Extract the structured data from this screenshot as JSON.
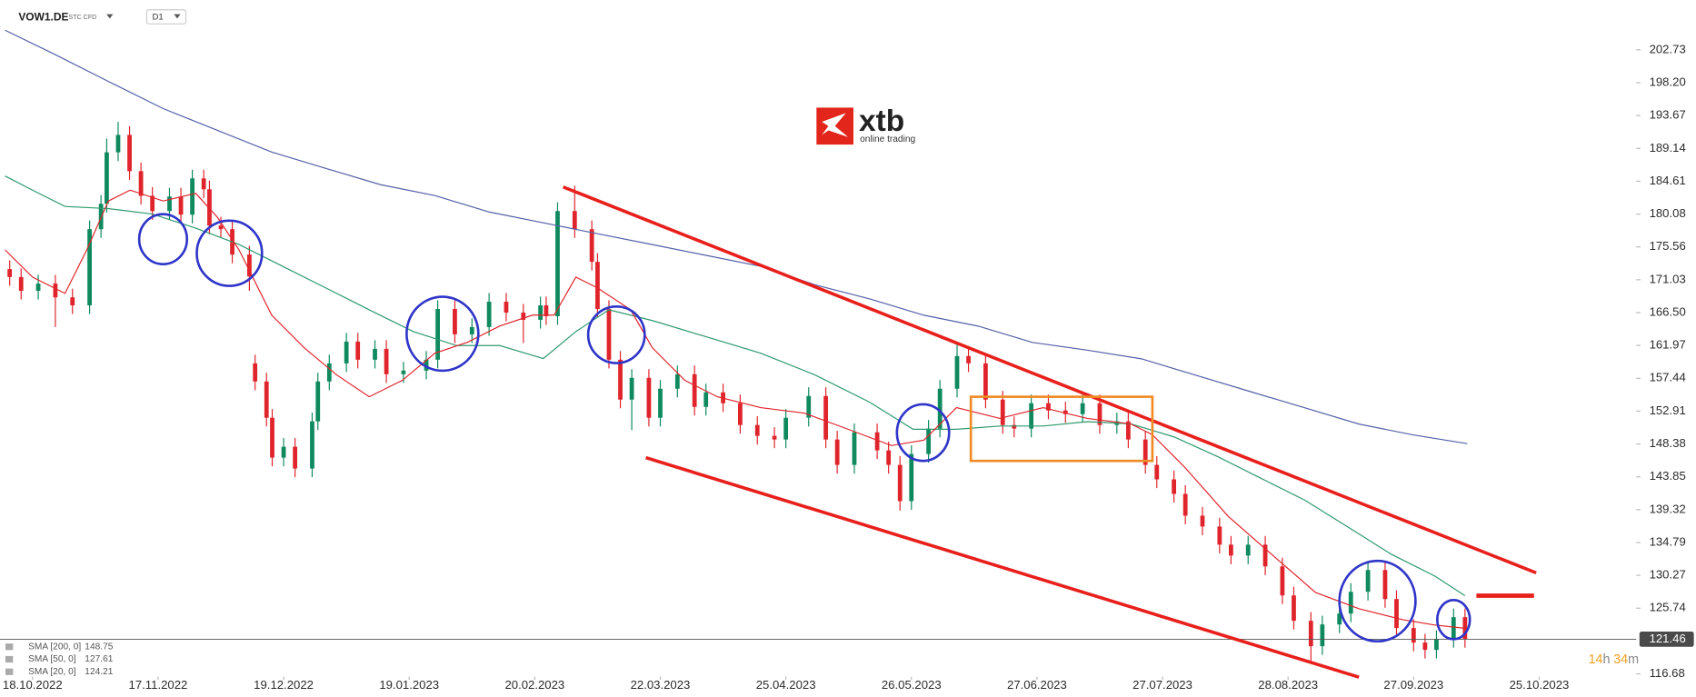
{
  "header": {
    "symbol": "VOW1.DE",
    "instrument": "STC CFD",
    "interval": "D1"
  },
  "logo": {
    "name": "xtb",
    "tagline": "online trading"
  },
  "countdown": [
    "14",
    "h",
    "34",
    "m"
  ],
  "chart_data": {
    "type": "candlestick",
    "up_color": "#0f8a5f",
    "down_color": "#e0242b",
    "xlim": [
      -5.7,
      281
    ],
    "ylim": [
      113.6,
      209.6
    ],
    "xticks": [
      {
        "value": 0,
        "label": "18.10.2022"
      },
      {
        "value": 22,
        "label": "17.11.2022"
      },
      {
        "value": 44,
        "label": "19.12.2022"
      },
      {
        "value": 66,
        "label": "19.01.2023"
      },
      {
        "value": 88,
        "label": "20.02.2023"
      },
      {
        "value": 110,
        "label": "22.03.2023"
      },
      {
        "value": 132,
        "label": "25.04.2023"
      },
      {
        "value": 154,
        "label": "26.05.2023"
      },
      {
        "value": 176,
        "label": "27.06.2023"
      },
      {
        "value": 198,
        "label": "27.07.2023"
      },
      {
        "value": 220,
        "label": "28.08.2023"
      },
      {
        "value": 242,
        "label": "27.09.2023"
      },
      {
        "value": 264,
        "label": "25.10.2023"
      }
    ],
    "yticks": [
      202.73,
      {
        "value": 198.2,
        "label": "198.20"
      },
      193.67,
      189.14,
      184.61,
      180.08,
      175.56,
      171.03,
      {
        "value": 166.5,
        "label": "166.50"
      },
      161.97,
      157.44,
      152.91,
      148.38,
      143.85,
      139.32,
      134.79,
      130.27,
      125.74,
      116.68
    ],
    "last_price": 121.46,
    "candles": {
      "x": [
        -4,
        -2,
        1,
        4,
        7,
        10,
        12,
        13,
        15,
        17,
        19,
        21,
        24,
        26,
        28,
        30,
        31,
        33,
        35,
        38,
        39,
        41,
        42,
        44,
        46,
        49,
        50,
        52,
        55,
        57,
        60,
        62,
        65,
        69,
        71,
        74,
        77,
        80,
        83,
        86,
        89,
        90,
        92,
        95,
        98,
        99,
        101,
        103,
        105,
        108,
        110,
        113,
        116,
        118,
        121,
        124,
        127,
        130,
        132,
        136,
        139,
        141,
        144,
        148,
        150,
        152,
        154,
        157,
        159,
        162,
        164,
        167,
        170,
        172,
        175,
        178,
        181,
        184,
        187,
        190,
        192,
        195,
        197,
        200,
        202,
        205,
        208,
        210,
        213,
        216,
        219,
        221,
        224,
        226,
        229,
        231,
        234,
        237,
        239,
        242,
        244,
        246,
        249,
        251
      ],
      "open": [
        172.5,
        171.4,
        169.5,
        170.5,
        168.6,
        167.5,
        178.0,
        181.5,
        188.6,
        191.0,
        186.0,
        182.6,
        180.5,
        182.5,
        180.0,
        185.0,
        183.5,
        178.5,
        178.0,
        174.5,
        159.5,
        157.0,
        152.0,
        146.5,
        148.0,
        145.0,
        151.5,
        157.0,
        159.5,
        162.5,
        160.0,
        161.5,
        158.0,
        158.5,
        160.0,
        167.0,
        163.5,
        164.5,
        168.0,
        166.5,
        165.5,
        167.5,
        166.0,
        180.5,
        178.0,
        173.5,
        167.0,
        160.0,
        154.5,
        157.5,
        152.0,
        156.0,
        158.0,
        153.5,
        155.5,
        154.0,
        151.0,
        149.5,
        149.0,
        152.0,
        155.0,
        149.0,
        145.5,
        150.0,
        147.5,
        145.5,
        140.5,
        147.0,
        150.5,
        156.0,
        160.5,
        159.5,
        154.5,
        151.0,
        150.5,
        154.0,
        153.0,
        152.5,
        154.0,
        151.0,
        151.5,
        149.0,
        145.5,
        143.5,
        141.5,
        138.5,
        137.0,
        134.5,
        133.0,
        134.5,
        131.5,
        127.5,
        124.0,
        120.5,
        123.5,
        125.0,
        128.0,
        131.0,
        127.0,
        123.0,
        121.0,
        120.0,
        121.5,
        124.5
      ],
      "high": [
        173.7,
        172.6,
        171.7,
        171.7,
        169.8,
        179.2,
        182.7,
        190.5,
        192.8,
        192.2,
        187.2,
        183.8,
        183.7,
        183.7,
        186.2,
        186.2,
        184.7,
        179.7,
        179.2,
        175.7,
        160.7,
        158.2,
        153.2,
        149.2,
        149.2,
        152.7,
        158.2,
        160.7,
        163.7,
        163.7,
        162.7,
        162.7,
        159.7,
        161.2,
        168.2,
        168.2,
        165.7,
        169.2,
        169.2,
        167.7,
        168.7,
        168.7,
        181.7,
        184.0,
        179.2,
        174.7,
        168.2,
        161.2,
        158.7,
        158.7,
        157.2,
        159.2,
        159.2,
        156.7,
        156.7,
        155.2,
        152.2,
        150.7,
        153.2,
        156.2,
        156.2,
        150.2,
        151.2,
        151.2,
        148.7,
        146.7,
        148.2,
        151.7,
        157.2,
        162.3,
        161.7,
        160.7,
        155.7,
        152.2,
        155.2,
        155.2,
        154.2,
        155.2,
        155.2,
        152.7,
        152.7,
        150.2,
        146.7,
        144.7,
        142.7,
        139.7,
        138.2,
        135.7,
        135.7,
        135.7,
        132.7,
        128.7,
        125.2,
        124.7,
        126.2,
        129.2,
        132.2,
        132.2,
        128.2,
        124.2,
        122.2,
        122.7,
        125.7,
        125.7
      ],
      "low": [
        170.2,
        168.3,
        168.3,
        164.5,
        166.3,
        166.3,
        176.8,
        180.3,
        187.4,
        184.8,
        181.4,
        179.3,
        179.3,
        178.8,
        178.8,
        182.3,
        177.3,
        176.8,
        173.3,
        169.5,
        155.8,
        150.8,
        145.3,
        145.3,
        143.8,
        143.8,
        150.3,
        155.8,
        158.3,
        158.8,
        158.8,
        156.8,
        156.8,
        157.3,
        158.8,
        162.3,
        162.3,
        163.3,
        165.3,
        162.3,
        164.3,
        164.8,
        164.8,
        176.8,
        172.3,
        165.8,
        158.8,
        153.3,
        150.3,
        150.8,
        150.8,
        154.8,
        152.3,
        152.3,
        152.8,
        149.8,
        148.3,
        147.8,
        147.8,
        150.8,
        147.8,
        144.3,
        144.3,
        146.3,
        144.3,
        139.2,
        139.3,
        145.8,
        149.3,
        154.8,
        158.3,
        153.3,
        149.8,
        149.3,
        149.3,
        151.8,
        151.3,
        151.3,
        149.8,
        149.8,
        147.8,
        144.3,
        142.3,
        140.3,
        137.3,
        135.8,
        133.3,
        131.8,
        131.8,
        130.3,
        126.3,
        122.8,
        118.3,
        119.3,
        122.3,
        123.8,
        126.8,
        125.8,
        121.8,
        119.8,
        118.8,
        118.8,
        120.3,
        120.3
      ],
      "close": [
        171.4,
        169.5,
        170.5,
        168.6,
        167.5,
        178.0,
        181.5,
        188.6,
        191.0,
        186.0,
        182.6,
        180.5,
        182.5,
        180.0,
        185.0,
        183.5,
        178.5,
        178.0,
        174.5,
        171.5,
        157.0,
        152.0,
        146.5,
        148.0,
        145.0,
        151.5,
        157.0,
        159.5,
        162.5,
        160.0,
        161.5,
        158.0,
        158.5,
        160.0,
        167.0,
        163.5,
        164.5,
        168.0,
        166.5,
        165.5,
        167.5,
        166.0,
        180.5,
        178.0,
        173.5,
        167.0,
        160.0,
        154.5,
        157.5,
        152.0,
        156.0,
        158.0,
        153.5,
        155.5,
        154.0,
        151.0,
        149.5,
        149.0,
        152.0,
        155.0,
        149.0,
        145.5,
        150.0,
        147.5,
        145.5,
        140.5,
        147.0,
        150.5,
        156.0,
        160.5,
        159.5,
        154.5,
        151.0,
        150.5,
        154.0,
        153.0,
        152.5,
        154.0,
        151.0,
        151.5,
        149.0,
        145.5,
        143.5,
        141.5,
        138.5,
        137.0,
        134.5,
        133.0,
        134.5,
        131.5,
        127.5,
        124.0,
        120.5,
        123.5,
        125.0,
        128.0,
        131.0,
        127.0,
        123.0,
        121.0,
        120.0,
        121.5,
        124.5,
        121.5
      ]
    },
    "series": [
      {
        "name": "SMA [200, 0]",
        "last_value": 148.75,
        "color": "#5560a8",
        "x": [
          -4.8,
          3.8,
          13.3,
          22.9,
          32.4,
          41.9,
          51.4,
          61,
          70.5,
          80,
          89.5,
          99,
          108.6,
          118.1,
          127.6,
          137.1,
          146.7,
          156.2,
          165.7,
          175.2,
          184.8,
          194.3,
          203.8,
          213.3,
          222.9,
          232.4,
          241.9,
          251.4
        ],
        "values": [
          205.43,
          202.13,
          198.38,
          194.63,
          191.63,
          188.63,
          186.38,
          184.13,
          182.63,
          180.38,
          178.88,
          177.38,
          175.88,
          174.38,
          172.88,
          170.33,
          168.38,
          166.13,
          164.63,
          162.38,
          161.33,
          160.13,
          157.88,
          155.63,
          153.38,
          151.13,
          149.63,
          148.43
        ]
      },
      {
        "name": "SMA [50, 0]",
        "last_value": 127.61,
        "color": "#2e9a6e",
        "x": [
          -4.8,
          0,
          5.7,
          13.3,
          21,
          28.6,
          36.2,
          43.8,
          51.4,
          59,
          66.7,
          74.3,
          81.9,
          89.5,
          95.2,
          101,
          108.6,
          118.1,
          127.6,
          137.1,
          146.7,
          154.3,
          161.9,
          169.5,
          177.1,
          184.8,
          192.4,
          200,
          207.6,
          215.2,
          222.9,
          230.5,
          238.1,
          245.7,
          251
        ],
        "values": [
          185.34,
          183.39,
          181.14,
          180.84,
          180.09,
          178.14,
          175.89,
          172.89,
          169.89,
          166.89,
          163.89,
          161.95,
          161.95,
          160.15,
          163.89,
          166.89,
          165.4,
          163.15,
          160.9,
          157.9,
          154.15,
          150.41,
          150.41,
          150.86,
          150.86,
          151.46,
          151.16,
          149.36,
          146.66,
          143.66,
          140.66,
          136.92,
          133.17,
          130.17,
          127.47
        ]
      },
      {
        "name": "SMA [20, 0]",
        "last_value": 124.21,
        "color": "#e0242b",
        "x": [
          -4.8,
          0,
          5.7,
          9.5,
          13.3,
          17.1,
          22.9,
          28.6,
          32.4,
          36.2,
          41.9,
          47.6,
          53.3,
          59,
          64.8,
          70.5,
          76.2,
          81.9,
          87.6,
          91.4,
          95.2,
          99,
          104.8,
          108.6,
          114.3,
          120,
          127.6,
          135.2,
          142.9,
          150.5,
          156.2,
          161.9,
          169.5,
          177.1,
          184.8,
          192.4,
          196.2,
          201.9,
          209.5,
          217.1,
          224.8,
          232.4,
          240,
          245.7,
          251
        ],
        "values": [
          175.14,
          171.4,
          169.15,
          175.14,
          181.89,
          183.39,
          181.89,
          182.94,
          179.64,
          175.14,
          166.15,
          161.65,
          157.9,
          154.9,
          157.15,
          160.9,
          162.4,
          164.65,
          166.15,
          166.15,
          171.4,
          169.89,
          166.89,
          161.65,
          157.15,
          154.9,
          153.4,
          152.65,
          150.41,
          148.16,
          148.91,
          153.4,
          151.91,
          153.4,
          151.91,
          151.16,
          149.66,
          145.16,
          138.41,
          133.17,
          127.92,
          125.67,
          124.17,
          123.42,
          122.97
        ]
      }
    ]
  }
}
